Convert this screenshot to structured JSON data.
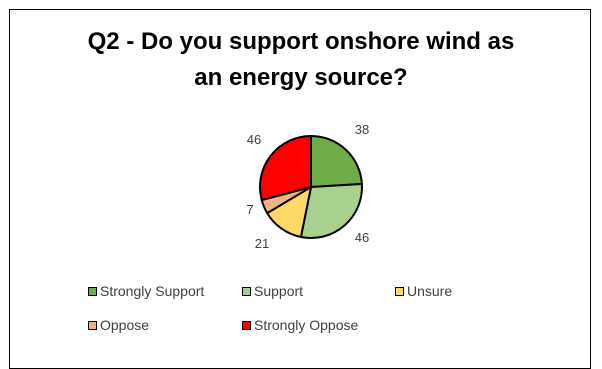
{
  "chart_data": {
    "type": "pie",
    "title": "Q2 - Do you support onshore wind as\nan energy source?",
    "categories": [
      "Strongly Support",
      "Support",
      "Unsure",
      "Oppose",
      "Strongly Oppose"
    ],
    "values": [
      38,
      46,
      21,
      7,
      46
    ],
    "colors": [
      "#70ad47",
      "#a9d18e",
      "#ffd966",
      "#f4b183",
      "#ff0000"
    ],
    "legend_position": "bottom"
  }
}
